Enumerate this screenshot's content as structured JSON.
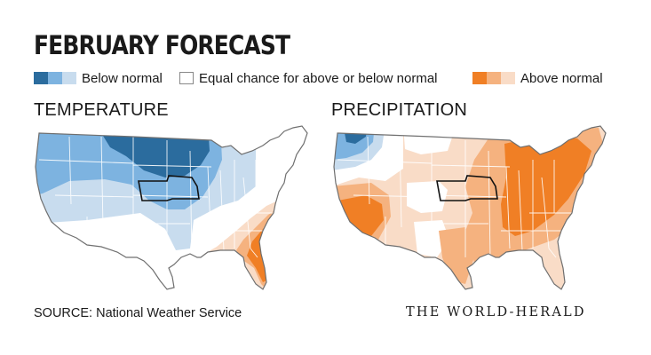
{
  "title": "FEBRUARY FORECAST",
  "legend": {
    "below": {
      "label": "Below normal",
      "colors": [
        "#2b6c9e",
        "#7db3e0",
        "#c8dcee"
      ]
    },
    "equal": {
      "label": "Equal chance for above or below normal",
      "color": "#ffffff"
    },
    "above": {
      "label": "Above normal",
      "colors": [
        "#f07f25",
        "#f5b27f",
        "#f9dcc7"
      ]
    }
  },
  "maps": {
    "temperature": {
      "title": "TEMPERATURE"
    },
    "precipitation": {
      "title": "PRECIPITATION"
    }
  },
  "highlight_state": "Nebraska",
  "source": "SOURCE: National Weather Service",
  "brand": "THE WORLD-HERALD"
}
